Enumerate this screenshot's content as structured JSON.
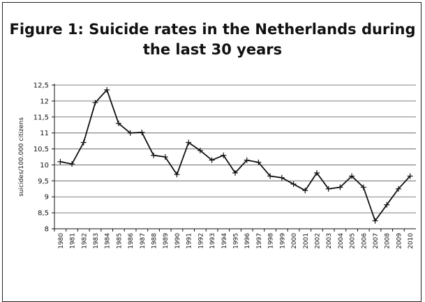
{
  "chart_data": {
    "type": "line",
    "title_lines": [
      "Figure 1: Suicide rates in the Netherlands during",
      "the last 30 years"
    ],
    "ylabel": "suicides/100.000 citizens",
    "xlabel": "",
    "ylim": [
      8,
      12.5
    ],
    "y_ticks": [
      "8",
      "8,5",
      "9",
      "9,5",
      "10",
      "10,5",
      "11",
      "11,5",
      "12",
      "12,5"
    ],
    "x": [
      "1980",
      "1981",
      "1982",
      "1983",
      "1984",
      "1985",
      "1986",
      "1987",
      "1988",
      "1989",
      "1990",
      "1991",
      "1992",
      "1993",
      "1994",
      "1995",
      "1996",
      "1997",
      "1998",
      "1999",
      "2000",
      "2001",
      "2002",
      "2003",
      "2004",
      "2005",
      "2006",
      "2007",
      "2008",
      "2009",
      "2010"
    ],
    "values": [
      10.1,
      10.03,
      10.7,
      11.95,
      12.35,
      11.3,
      11.0,
      11.02,
      10.3,
      10.25,
      9.7,
      10.7,
      10.45,
      10.15,
      10.3,
      9.75,
      10.15,
      10.08,
      9.65,
      9.6,
      9.4,
      9.2,
      9.75,
      9.25,
      9.3,
      9.65,
      9.3,
      8.25,
      8.75,
      9.25,
      9.65
    ],
    "marker": "plus",
    "line_color": "#111111",
    "grid": true,
    "legend": "none"
  }
}
